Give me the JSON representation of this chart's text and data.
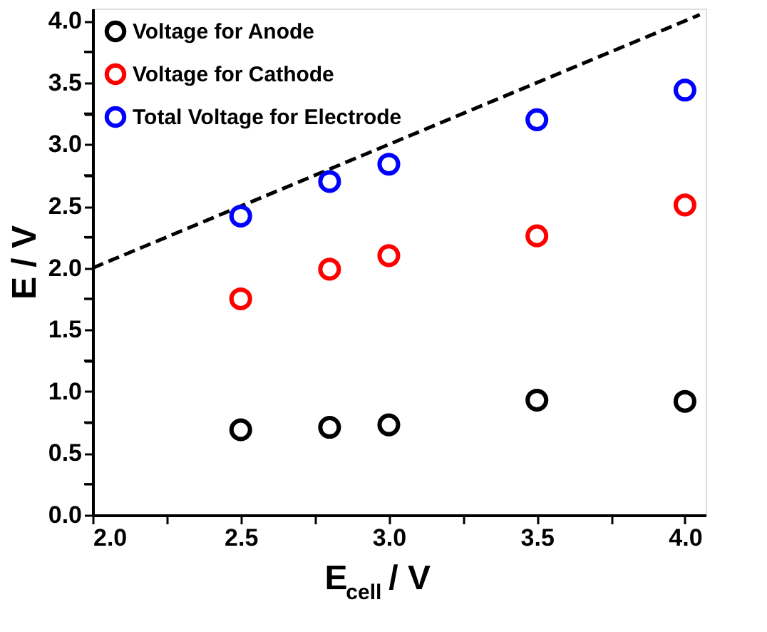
{
  "chart_data": {
    "type": "scatter",
    "xlabel": "E$_{cell}$ / V",
    "ylabel": "E / V",
    "xlim": [
      2.0,
      4.07
    ],
    "ylim": [
      0.0,
      4.1
    ],
    "xticks": [
      {
        "value": 2,
        "label": "2.0"
      },
      {
        "value": 2.25,
        "label": null
      },
      2.5,
      {
        "value": 2.75,
        "label": null
      },
      {
        "value": 3,
        "label": "3.0"
      },
      {
        "value": 3.25,
        "label": null
      },
      3.5,
      {
        "value": 3.75,
        "label": null
      },
      {
        "value": 4,
        "label": "4.0"
      }
    ],
    "yticks": [
      {
        "value": 0,
        "label": "0.0"
      },
      {
        "value": 0.25,
        "label": null
      },
      0.5,
      {
        "value": 0.75,
        "label": null
      },
      {
        "value": 1,
        "label": "1.0"
      },
      {
        "value": 1.25,
        "label": null
      },
      1.5,
      {
        "value": 1.75,
        "label": null
      },
      {
        "value": 2,
        "label": "2.0"
      },
      {
        "value": 2.25,
        "label": null
      },
      2.5,
      {
        "value": 2.75,
        "label": null
      },
      {
        "value": 3,
        "label": "3.0"
      },
      {
        "value": 3.25,
        "label": null
      },
      3.5,
      {
        "value": 3.75,
        "label": null
      },
      {
        "value": 4,
        "label": "4.0"
      }
    ],
    "x": [
      2.5,
      2.8,
      3.0,
      3.5,
      4.0
    ],
    "marker": "circle",
    "legend": "top left",
    "grid": false,
    "series": [
      {
        "name": "Voltage for Anode",
        "color": "#000000",
        "values": [
          0.69,
          0.71,
          0.73,
          0.93,
          0.92
        ]
      },
      {
        "name": "Voltage for Cathode",
        "color": "#ff0000",
        "values": [
          1.75,
          1.99,
          2.1,
          2.26,
          2.51
        ]
      },
      {
        "name": "Total Voltage for Electrode",
        "color": "#0000ff",
        "values": [
          2.42,
          2.7,
          2.84,
          3.2,
          3.44
        ]
      },
      {
        "type": "line",
        "x": [
          2.0,
          4.05
        ],
        "values": [
          2.0,
          4.05
        ],
        "color": "#000000",
        "line_style": "dashed",
        "marker": "none"
      }
    ]
  }
}
